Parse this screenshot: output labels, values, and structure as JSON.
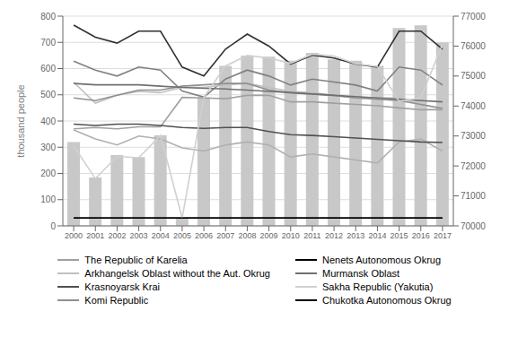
{
  "chart_data": {
    "type": "bar",
    "ylabel": "thousand people",
    "categories": [
      2000,
      2001,
      2002,
      2003,
      2004,
      2005,
      2006,
      2007,
      2008,
      2009,
      2010,
      2011,
      2012,
      2013,
      2014,
      2015,
      2016,
      2017
    ],
    "ylim": [
      0,
      800
    ],
    "yticks": [
      0,
      100,
      200,
      300,
      400,
      500,
      600,
      700,
      800
    ],
    "y2lim": [
      70000,
      77000
    ],
    "y2ticks": [
      70000,
      71000,
      72000,
      73000,
      74000,
      75000,
      76000,
      77000
    ],
    "grid": true,
    "legend": "bottom",
    "series": [
      {
        "type": "bar",
        "color": "#c8c8c8",
        "values": [
          320,
          185,
          270,
          262,
          345,
          30,
          490,
          610,
          650,
          645,
          630,
          660,
          635,
          630,
          610,
          755,
          765,
          700
        ]
      },
      {
        "type": "line",
        "axis": "y2",
        "color": "#303030",
        "values": [
          76700,
          76300,
          76100,
          76500,
          76500,
          75300,
          75000,
          75900,
          76400,
          76000,
          75400,
          75700,
          75600,
          75400,
          75300,
          76500,
          76500,
          75900
        ]
      },
      {
        "type": "line",
        "axis": "y2",
        "color": "#808080",
        "values": [
          75500,
          75200,
          75000,
          75300,
          75200,
          74500,
          74300,
          74900,
          75200,
          75000,
          74700,
          74900,
          74800,
          74700,
          74500,
          75300,
          75200,
          74700
        ]
      },
      {
        "type": "line",
        "axis": "y2",
        "color": "#b0b0b0",
        "values": [
          73200,
          72900,
          72700,
          73000,
          72900,
          72600,
          72500,
          72700,
          72800,
          72700,
          72300,
          72400,
          72300,
          72200,
          72100,
          72800,
          72900,
          72500
        ]
      },
      {
        "type": "line",
        "name": "The Republic of Karelia",
        "color": "#a0a0a0",
        "values": [
          370,
          375,
          370,
          378,
          378,
          490,
          488,
          485,
          498,
          498,
          473,
          473,
          468,
          463,
          458,
          450,
          443,
          443
        ]
      },
      {
        "type": "line",
        "name": "Arkhangelsk Oblast without the Aut. Okrug",
        "color": "#c0c0c0",
        "values": [
          548,
          468,
          498,
          513,
          508,
          528,
          528,
          538,
          543,
          528,
          513,
          508,
          498,
          488,
          488,
          488,
          463,
          448
        ]
      },
      {
        "type": "line",
        "name": "Krasnoyarsk Krai",
        "color": "#505050",
        "values": [
          388,
          383,
          388,
          388,
          383,
          375,
          372,
          375,
          375,
          360,
          348,
          345,
          340,
          335,
          330,
          325,
          320,
          318
        ]
      },
      {
        "type": "line",
        "name": "Komi Republic",
        "color": "#909090",
        "values": [
          488,
          478,
          498,
          518,
          518,
          533,
          538,
          543,
          543,
          518,
          508,
          503,
          498,
          488,
          483,
          478,
          463,
          448
        ]
      },
      {
        "type": "line",
        "name": "Nenets Autonomous Okrug",
        "color": "#000000",
        "values": [
          30,
          30,
          30,
          30,
          30,
          30,
          30,
          30,
          30,
          30,
          30,
          30,
          30,
          30,
          30,
          30,
          30,
          30
        ]
      },
      {
        "type": "line",
        "name": "Murmansk Oblast",
        "color": "#707070",
        "values": [
          543,
          538,
          538,
          538,
          533,
          528,
          525,
          522,
          518,
          513,
          508,
          503,
          498,
          493,
          488,
          483,
          478,
          473
        ]
      },
      {
        "type": "line",
        "name": "Sakha Republic (Yakutia)",
        "color": "#d0d0d0",
        "values": [
          305,
          180,
          265,
          260,
          345,
          30,
          490,
          610,
          650,
          640,
          620,
          655,
          648,
          618,
          608,
          475,
          488,
          693
        ]
      },
      {
        "type": "line",
        "name": "Chukotka Autonomous Okrug",
        "color": "#000000",
        "values": [
          30,
          30,
          30,
          30,
          30,
          30,
          30,
          30,
          30,
          30,
          30,
          30,
          30,
          30,
          30,
          30,
          30,
          30
        ]
      }
    ]
  }
}
